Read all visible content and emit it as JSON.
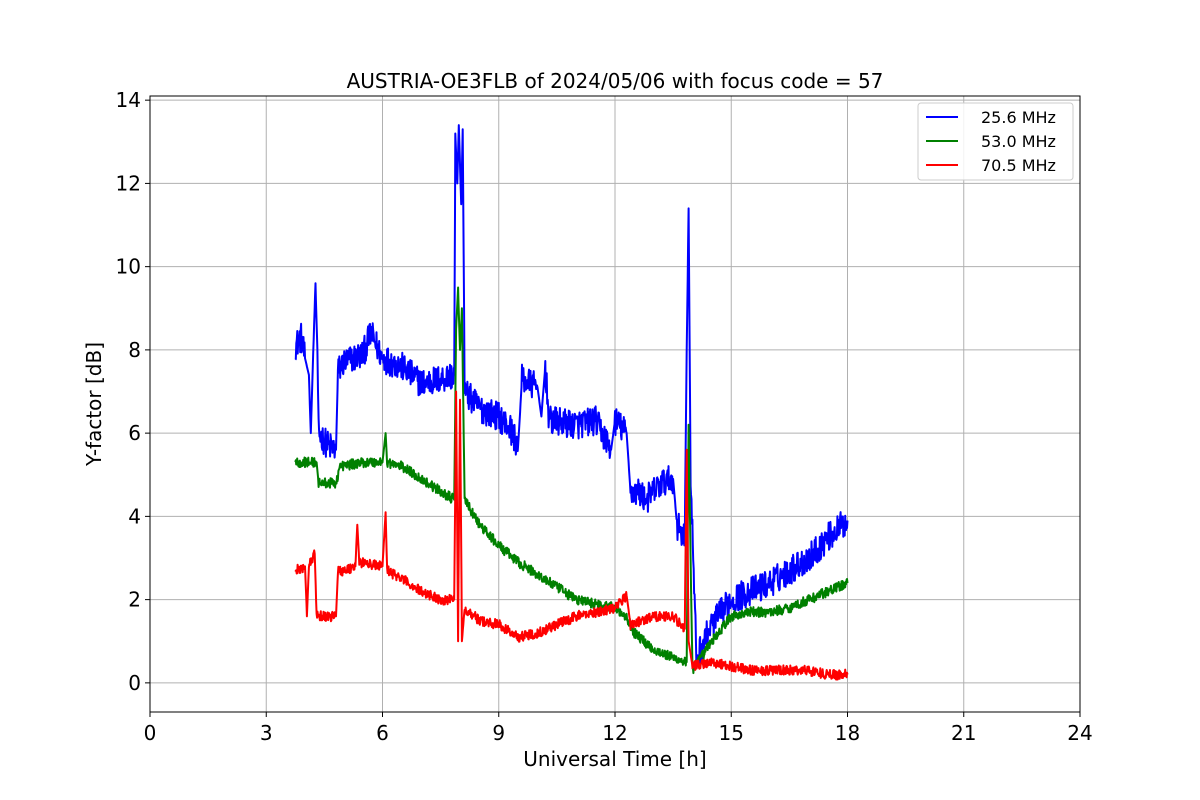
{
  "chart_data": {
    "type": "line",
    "title": "AUSTRIA-OE3FLB of 2024/05/06 with focus code = 57",
    "xlabel": "Universal Time [h]",
    "ylabel": "Y-factor [dB]",
    "xlim": [
      0,
      24
    ],
    "ylim": [
      -0.7,
      14.1
    ],
    "xticks": [
      0,
      3,
      6,
      9,
      12,
      15,
      18,
      21,
      24
    ],
    "yticks": [
      0,
      2,
      4,
      6,
      8,
      10,
      12,
      14
    ],
    "grid": true,
    "legend_position": "top-right",
    "series": [
      {
        "name": "25.6 MHz",
        "color": "#0000ff",
        "noise": 0.35,
        "points": [
          [
            3.75,
            8.1
          ],
          [
            3.9,
            8.3
          ],
          [
            4.0,
            7.8
          ],
          [
            4.1,
            7.4
          ],
          [
            4.15,
            6.0
          ],
          [
            4.2,
            7.6
          ],
          [
            4.27,
            9.6
          ],
          [
            4.32,
            8.0
          ],
          [
            4.35,
            6.0
          ],
          [
            4.6,
            5.7
          ],
          [
            4.8,
            5.6
          ],
          [
            4.85,
            7.5
          ],
          [
            5.0,
            7.7
          ],
          [
            5.5,
            7.9
          ],
          [
            5.7,
            8.4
          ],
          [
            6.0,
            7.8
          ],
          [
            6.5,
            7.6
          ],
          [
            7.0,
            7.2
          ],
          [
            7.5,
            7.3
          ],
          [
            7.85,
            7.4
          ],
          [
            7.88,
            13.2
          ],
          [
            7.93,
            12.0
          ],
          [
            7.97,
            13.4
          ],
          [
            8.03,
            11.5
          ],
          [
            8.07,
            13.3
          ],
          [
            8.12,
            7.0
          ],
          [
            8.5,
            6.6
          ],
          [
            9.0,
            6.4
          ],
          [
            9.3,
            6.1
          ],
          [
            9.5,
            5.7
          ],
          [
            9.6,
            7.3
          ],
          [
            10.0,
            7.1
          ],
          [
            10.1,
            6.4
          ],
          [
            10.2,
            7.6
          ],
          [
            10.3,
            6.3
          ],
          [
            11.0,
            6.2
          ],
          [
            11.5,
            6.3
          ],
          [
            11.9,
            5.6
          ],
          [
            12.0,
            6.3
          ],
          [
            12.3,
            6.0
          ],
          [
            12.4,
            4.6
          ],
          [
            12.6,
            4.6
          ],
          [
            12.8,
            4.4
          ],
          [
            13.2,
            4.8
          ],
          [
            13.5,
            4.9
          ],
          [
            13.6,
            3.8
          ],
          [
            13.8,
            3.5
          ],
          [
            13.85,
            8.0
          ],
          [
            13.9,
            11.4
          ],
          [
            13.95,
            5.0
          ],
          [
            14.1,
            0.6
          ],
          [
            14.5,
            1.4
          ],
          [
            15.0,
            2.0
          ],
          [
            15.5,
            2.2
          ],
          [
            16.0,
            2.4
          ],
          [
            16.5,
            2.7
          ],
          [
            17.0,
            3.0
          ],
          [
            17.5,
            3.5
          ],
          [
            18.0,
            3.9
          ]
        ]
      },
      {
        "name": "53.0 MHz",
        "color": "#008000",
        "noise": 0.12,
        "points": [
          [
            3.75,
            5.3
          ],
          [
            4.0,
            5.3
          ],
          [
            4.3,
            5.3
          ],
          [
            4.35,
            4.8
          ],
          [
            4.8,
            4.8
          ],
          [
            4.9,
            5.2
          ],
          [
            5.5,
            5.3
          ],
          [
            6.0,
            5.3
          ],
          [
            6.08,
            6.0
          ],
          [
            6.12,
            5.3
          ],
          [
            6.5,
            5.2
          ],
          [
            7.0,
            4.9
          ],
          [
            7.5,
            4.6
          ],
          [
            7.85,
            4.4
          ],
          [
            7.9,
            8.5
          ],
          [
            7.95,
            9.5
          ],
          [
            8.0,
            8.0
          ],
          [
            8.05,
            9.0
          ],
          [
            8.12,
            4.4
          ],
          [
            8.5,
            3.8
          ],
          [
            9.0,
            3.3
          ],
          [
            9.5,
            2.9
          ],
          [
            10.0,
            2.6
          ],
          [
            10.5,
            2.3
          ],
          [
            11.0,
            2.0
          ],
          [
            11.5,
            1.9
          ],
          [
            12.0,
            1.8
          ],
          [
            12.3,
            1.6
          ],
          [
            12.5,
            1.2
          ],
          [
            13.0,
            0.8
          ],
          [
            13.5,
            0.6
          ],
          [
            13.85,
            0.5
          ],
          [
            13.9,
            6.2
          ],
          [
            13.95,
            3.0
          ],
          [
            14.0,
            0.3
          ],
          [
            14.5,
            1.0
          ],
          [
            15.0,
            1.6
          ],
          [
            15.5,
            1.7
          ],
          [
            16.0,
            1.7
          ],
          [
            16.5,
            1.8
          ],
          [
            17.0,
            2.0
          ],
          [
            17.5,
            2.2
          ],
          [
            18.0,
            2.4
          ]
        ]
      },
      {
        "name": "70.5 MHz",
        "color": "#ff0000",
        "noise": 0.12,
        "points": [
          [
            3.75,
            2.7
          ],
          [
            4.0,
            2.8
          ],
          [
            4.05,
            1.6
          ],
          [
            4.1,
            2.8
          ],
          [
            4.25,
            3.1
          ],
          [
            4.3,
            1.6
          ],
          [
            4.8,
            1.6
          ],
          [
            4.85,
            2.7
          ],
          [
            5.0,
            2.7
          ],
          [
            5.3,
            2.8
          ],
          [
            5.35,
            3.8
          ],
          [
            5.4,
            2.9
          ],
          [
            6.0,
            2.8
          ],
          [
            6.08,
            4.1
          ],
          [
            6.12,
            2.7
          ],
          [
            6.5,
            2.5
          ],
          [
            7.0,
            2.2
          ],
          [
            7.5,
            2.0
          ],
          [
            7.85,
            2.0
          ],
          [
            7.9,
            7.0
          ],
          [
            7.95,
            1.0
          ],
          [
            8.0,
            6.8
          ],
          [
            8.05,
            1.0
          ],
          [
            8.12,
            1.8
          ],
          [
            8.5,
            1.5
          ],
          [
            9.0,
            1.4
          ],
          [
            9.5,
            1.1
          ],
          [
            10.0,
            1.2
          ],
          [
            10.5,
            1.4
          ],
          [
            11.0,
            1.6
          ],
          [
            11.5,
            1.7
          ],
          [
            12.0,
            1.8
          ],
          [
            12.3,
            2.1
          ],
          [
            12.4,
            1.4
          ],
          [
            13.0,
            1.6
          ],
          [
            13.5,
            1.6
          ],
          [
            13.8,
            1.3
          ],
          [
            13.85,
            5.6
          ],
          [
            13.9,
            1.0
          ],
          [
            14.0,
            0.4
          ],
          [
            14.5,
            0.5
          ],
          [
            15.0,
            0.4
          ],
          [
            15.5,
            0.3
          ],
          [
            16.0,
            0.3
          ],
          [
            16.5,
            0.3
          ],
          [
            17.0,
            0.3
          ],
          [
            17.5,
            0.2
          ],
          [
            18.0,
            0.2
          ]
        ]
      }
    ]
  }
}
